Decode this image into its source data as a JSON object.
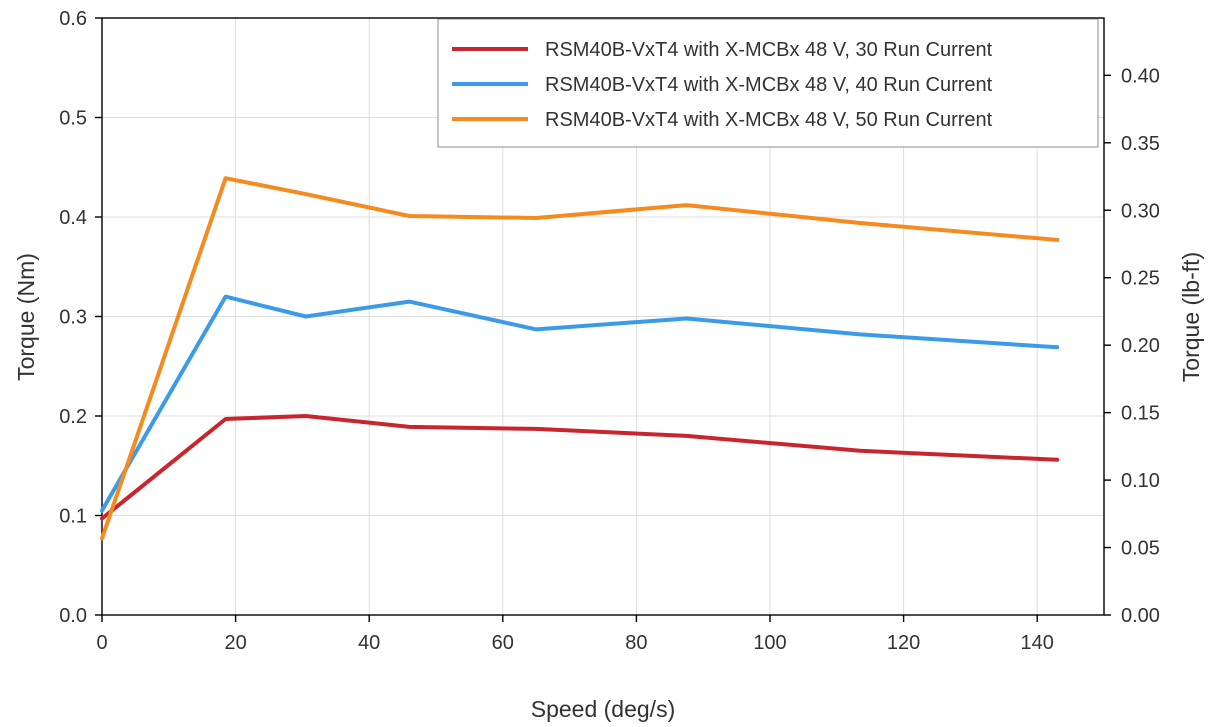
{
  "chart_data": {
    "type": "line",
    "title": "",
    "xlabel": "Speed (deg/s)",
    "ylabel": "Torque (Nm)",
    "y2label": "Torque (lb-ft)",
    "xlim": [
      0,
      150
    ],
    "ylim": [
      0,
      0.6
    ],
    "y2lim": [
      0,
      0.4425
    ],
    "x_ticks": [
      "0",
      "20",
      "40",
      "60",
      "80",
      "100",
      "120",
      "140"
    ],
    "y_ticks": [
      "0.0",
      "0.1",
      "0.2",
      "0.3",
      "0.4",
      "0.5",
      "0.6"
    ],
    "y2_ticks": [
      "0.00",
      "0.05",
      "0.10",
      "0.15",
      "0.20",
      "0.25",
      "0.30",
      "0.35",
      "0.40"
    ],
    "grid": true,
    "legend_position": "top-right",
    "series": [
      {
        "name": "RSM40B-VxT4 with X-MCBx 48 V, 30 Run Current",
        "color": "#c8252d",
        "x": [
          0,
          18.5,
          30.5,
          46,
          65,
          87.5,
          113.5,
          143
        ],
        "values": [
          0.097,
          0.197,
          0.2,
          0.189,
          0.187,
          0.18,
          0.165,
          0.156
        ]
      },
      {
        "name": "RSM40B-VxT4 with X-MCBx 48 V, 40 Run Current",
        "color": "#3c9be8",
        "x": [
          0,
          18.5,
          30.5,
          46,
          65,
          87.5,
          113.5,
          143
        ],
        "values": [
          0.105,
          0.32,
          0.3,
          0.315,
          0.287,
          0.298,
          0.282,
          0.269
        ]
      },
      {
        "name": "RSM40B-VxT4 with X-MCBx 48 V, 50 Run Current",
        "color": "#f58a1f",
        "x": [
          0,
          18.5,
          30.5,
          46,
          65,
          87.5,
          113.5,
          143
        ],
        "values": [
          0.077,
          0.439,
          0.423,
          0.401,
          0.399,
          0.412,
          0.394,
          0.377
        ]
      }
    ]
  }
}
